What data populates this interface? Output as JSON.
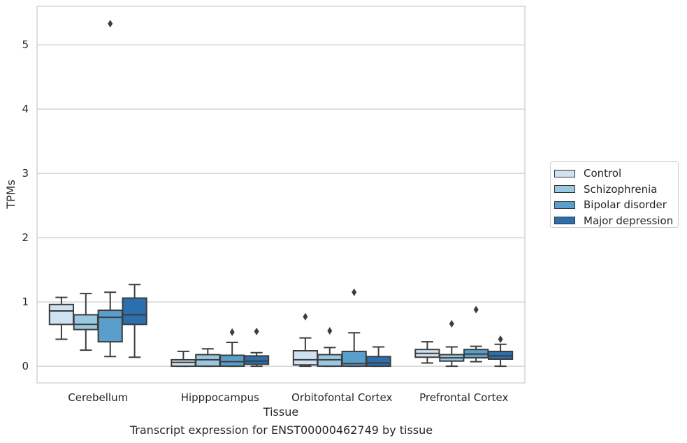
{
  "chart_data": {
    "type": "box",
    "caption": "Transcript expression for ENST00000462749 by tissue",
    "xlabel": "Tissue",
    "ylabel": "TPMs",
    "ylim": [
      -0.26,
      5.6
    ],
    "yticks": [
      0,
      1,
      2,
      3,
      4,
      5
    ],
    "grid": true,
    "legend_position": "right",
    "categories": [
      "Cerebellum",
      "Hipppocampus",
      "Orbitofontal Cortex",
      "Prefrontal Cortex"
    ],
    "series": [
      {
        "name": "Control",
        "color": "#d0e1f2",
        "boxes": [
          {
            "whislo": 0.42,
            "q1": 0.65,
            "med": 0.86,
            "q3": 0.96,
            "whishi": 1.07,
            "fliers": []
          },
          {
            "whislo": 0.0,
            "q1": 0.0,
            "med": 0.06,
            "q3": 0.1,
            "whishi": 0.23,
            "fliers": []
          },
          {
            "whislo": 0.0,
            "q1": 0.02,
            "med": 0.1,
            "q3": 0.24,
            "whishi": 0.44,
            "fliers": [
              0.77
            ]
          },
          {
            "whislo": 0.05,
            "q1": 0.14,
            "med": 0.2,
            "q3": 0.26,
            "whishi": 0.38,
            "fliers": []
          }
        ]
      },
      {
        "name": "Schizophrenia",
        "color": "#9ac8e0",
        "boxes": [
          {
            "whislo": 0.25,
            "q1": 0.57,
            "med": 0.65,
            "q3": 0.8,
            "whishi": 1.13,
            "fliers": []
          },
          {
            "whislo": 0.0,
            "q1": 0.0,
            "med": 0.1,
            "q3": 0.18,
            "whishi": 0.27,
            "fliers": []
          },
          {
            "whislo": 0.0,
            "q1": 0.0,
            "med": 0.1,
            "q3": 0.18,
            "whishi": 0.29,
            "fliers": [
              0.55
            ]
          },
          {
            "whislo": 0.0,
            "q1": 0.08,
            "med": 0.13,
            "q3": 0.18,
            "whishi": 0.3,
            "fliers": [
              0.66
            ]
          }
        ]
      },
      {
        "name": "Bipolar disorder",
        "color": "#5a9ecc",
        "boxes": [
          {
            "whislo": 0.15,
            "q1": 0.38,
            "med": 0.76,
            "q3": 0.87,
            "whishi": 1.15,
            "fliers": [
              5.33
            ]
          },
          {
            "whislo": 0.0,
            "q1": 0.0,
            "med": 0.07,
            "q3": 0.17,
            "whishi": 0.37,
            "fliers": [
              0.53
            ]
          },
          {
            "whislo": 0.0,
            "q1": 0.0,
            "med": 0.04,
            "q3": 0.23,
            "whishi": 0.52,
            "fliers": [
              1.15
            ]
          },
          {
            "whislo": 0.07,
            "q1": 0.13,
            "med": 0.19,
            "q3": 0.26,
            "whishi": 0.31,
            "fliers": [
              0.88
            ]
          }
        ]
      },
      {
        "name": "Major depression",
        "color": "#2c6fae",
        "boxes": [
          {
            "whislo": 0.14,
            "q1": 0.65,
            "med": 0.8,
            "q3": 1.06,
            "whishi": 1.27,
            "fliers": []
          },
          {
            "whislo": 0.0,
            "q1": 0.03,
            "med": 0.08,
            "q3": 0.16,
            "whishi": 0.21,
            "fliers": [
              0.54
            ]
          },
          {
            "whislo": 0.0,
            "q1": 0.0,
            "med": 0.05,
            "q3": 0.15,
            "whishi": 0.3,
            "fliers": []
          },
          {
            "whislo": 0.0,
            "q1": 0.11,
            "med": 0.16,
            "q3": 0.23,
            "whishi": 0.34,
            "fliers": [
              0.42
            ]
          }
        ]
      }
    ]
  }
}
